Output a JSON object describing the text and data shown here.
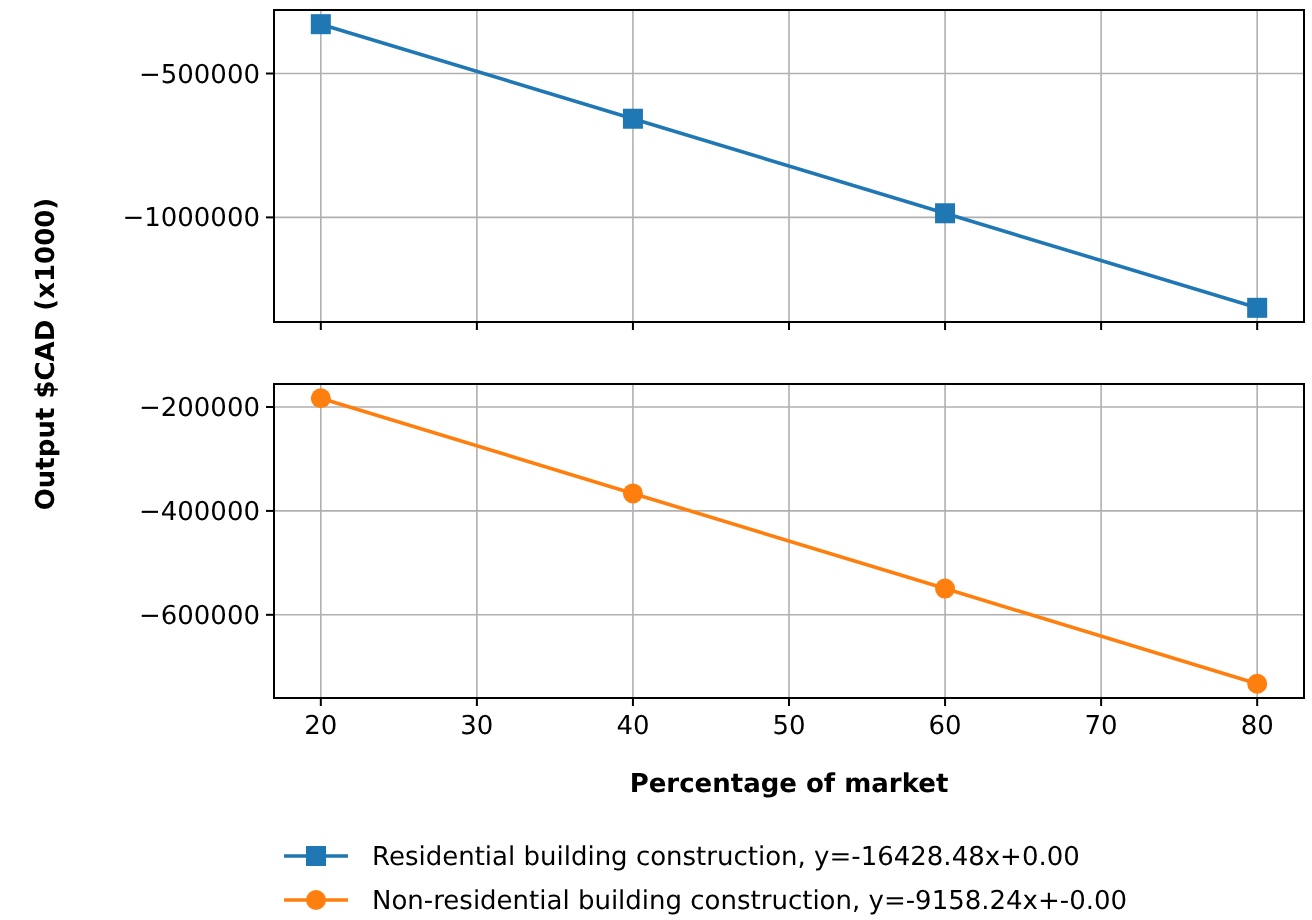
{
  "chart_data": [
    {
      "type": "line",
      "x": [
        20,
        40,
        60,
        80
      ],
      "ylabel": "Output $CAD (x1000)",
      "series": [
        {
          "name": "Residential building construction, y=-16428.48x+0.00",
          "color": "#1f77b4",
          "values": [
            -328570,
            -657139,
            -985709,
            -1314278
          ],
          "marker": "square"
        }
      ],
      "xlim": [
        17,
        83
      ],
      "xticks": [
        20,
        30,
        40,
        50,
        60,
        70,
        80
      ],
      "ylim": [
        -1363563,
        -279285
      ],
      "yticks": [
        -500000,
        -1000000
      ],
      "grid": true,
      "tick_labels": "y",
      "legend": "bottom",
      "line_style": "solid"
    },
    {
      "type": "line",
      "x": [
        20,
        40,
        60,
        80
      ],
      "xlabel": "Percentage of market",
      "series": [
        {
          "name": "Non-residential building construction, y=-9158.24x+-0.00",
          "color": "#ff7f0e",
          "values": [
            -183165,
            -366330,
            -549494,
            -732659
          ],
          "marker": "circle"
        }
      ],
      "xlim": [
        17,
        83
      ],
      "xticks": [
        20,
        30,
        40,
        50,
        60,
        70,
        80
      ],
      "ylim": [
        -760134,
        -155690
      ],
      "yticks": [
        -200000,
        -400000,
        -600000
      ],
      "grid": true,
      "legend": "bottom",
      "line_style": "solid"
    }
  ]
}
